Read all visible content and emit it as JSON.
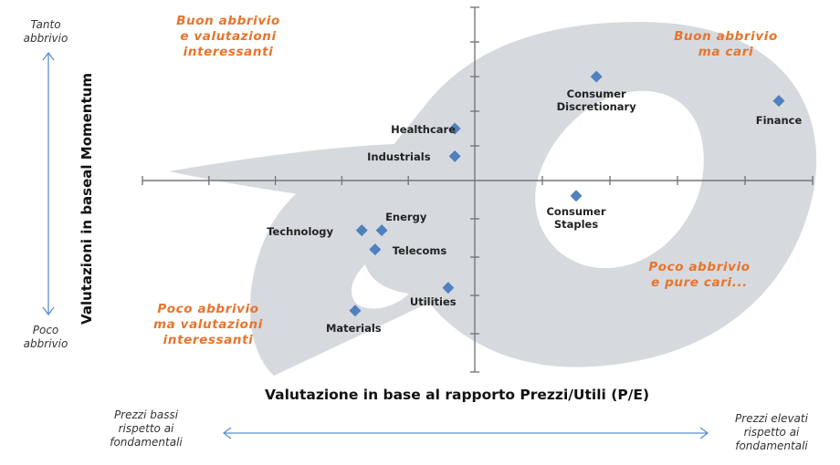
{
  "chart_data": {
    "type": "scatter",
    "title": "",
    "xlabel": "Valutazione in base al rapporto Prezzi/Utili (P/E)",
    "ylabel": "Valutazioni in baseal Momentum",
    "xlim": [
      -5,
      5
    ],
    "ylim": [
      -5,
      5
    ],
    "grid": false,
    "points": [
      {
        "name": "Consumer Discretionary",
        "x": 1.8,
        "y": 3.0
      },
      {
        "name": "Finance",
        "x": 4.5,
        "y": 2.3
      },
      {
        "name": "Healthcare",
        "x": -0.3,
        "y": 1.5
      },
      {
        "name": "Industrials",
        "x": -0.3,
        "y": 0.7
      },
      {
        "name": "Consumer Staples",
        "x": 1.5,
        "y": -0.4
      },
      {
        "name": "Technology",
        "x": -1.7,
        "y": -1.3
      },
      {
        "name": "Energy",
        "x": -1.4,
        "y": -1.3
      },
      {
        "name": "Telecoms",
        "x": -1.5,
        "y": -1.8
      },
      {
        "name": "Utilities",
        "x": -0.4,
        "y": -2.8
      },
      {
        "name": "Materials",
        "x": -1.8,
        "y": -3.4
      }
    ],
    "marker_color": "#4f81bd",
    "quadrant_color": "#e8742a",
    "quadrants": {
      "top_left": [
        "Buon abbrivio",
        "e valutazioni",
        "interessanti"
      ],
      "top_right": [
        "Buon abbrivio",
        "ma cari"
      ],
      "bottom_left": [
        "Poco abbrivio",
        "ma valutazioni",
        "interessanti"
      ],
      "bottom_right": [
        "Poco abbrivio",
        "e pure cari..."
      ]
    },
    "y_extremes": {
      "top": [
        "Tanto",
        "abbrivio"
      ],
      "bottom": [
        "Poco",
        "abbrivio"
      ]
    },
    "x_extremes": {
      "left": [
        "Prezzi bassi",
        "rispetto ai",
        "fondamentali"
      ],
      "right": [
        "Prezzi elevati",
        "rispetto ai",
        "fondamentali"
      ]
    }
  }
}
